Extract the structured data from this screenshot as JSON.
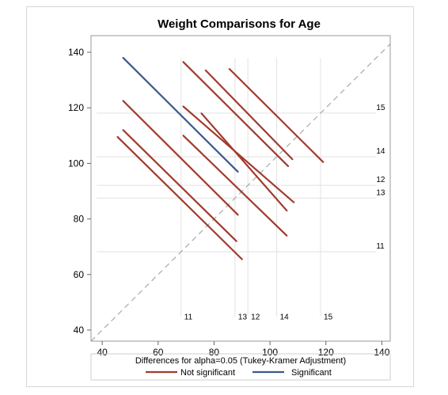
{
  "chart_data": {
    "type": "line",
    "title": "Weight Comparisons for Age",
    "xlim": [
      36,
      143
    ],
    "ylim": [
      36,
      146
    ],
    "x_ticks": [
      "40",
      "60",
      "80",
      "100",
      "120",
      "140"
    ],
    "y_ticks": [
      "40",
      "60",
      "80",
      "100",
      "120",
      "140"
    ],
    "reference_line": "diagonal y = x (dashed)",
    "level_means": [
      {
        "label": "11",
        "value": 68.2
      },
      {
        "label": "13",
        "value": 87.5
      },
      {
        "label": "12",
        "value": 92.1
      },
      {
        "label": "14",
        "value": 102.4
      },
      {
        "label": "15",
        "value": 118.1
      }
    ],
    "right_labels": [
      "15",
      "14",
      "12",
      "13",
      "11"
    ],
    "bottom_labels": [
      "11",
      "13",
      "12",
      "14",
      "15"
    ],
    "comparisons": [
      {
        "status": "not",
        "x": [
          45.5,
          90.0
        ],
        "y": [
          109.5,
          65.5
        ]
      },
      {
        "status": "not",
        "x": [
          47.5,
          88.0
        ],
        "y": [
          112.0,
          72.0
        ]
      },
      {
        "status": "not",
        "x": [
          47.5,
          88.5
        ],
        "y": [
          122.5,
          81.5
        ]
      },
      {
        "status": "sig",
        "x": [
          47.5,
          88.5
        ],
        "y": [
          138.0,
          97.0
        ]
      },
      {
        "status": "not",
        "x": [
          69.0,
          106.0
        ],
        "y": [
          110.0,
          74.0
        ]
      },
      {
        "status": "not",
        "x": [
          69.0,
          108.5
        ],
        "y": [
          120.5,
          86.0
        ]
      },
      {
        "status": "not",
        "x": [
          69.0,
          106.5
        ],
        "y": [
          136.5,
          99.0
        ]
      },
      {
        "status": "not",
        "x": [
          75.5,
          106.0
        ],
        "y": [
          118.0,
          83.0
        ]
      },
      {
        "status": "not",
        "x": [
          77.0,
          108.0
        ],
        "y": [
          133.5,
          101.5
        ]
      },
      {
        "status": "not",
        "x": [
          85.5,
          119.0
        ],
        "y": [
          134.0,
          100.5
        ]
      }
    ],
    "legend": {
      "title": "Differences for alpha=0.05 (Tukey-Kramer Adjustment)",
      "items": [
        {
          "label": "Not significant",
          "color": "#a23a2e"
        },
        {
          "label": "Significant",
          "color": "#3a5a8c"
        }
      ]
    },
    "colors": {
      "not": "#a23a2e",
      "sig": "#3a5a8c",
      "diagonal": "#aaaaaa",
      "ref": "#e2e2e2"
    }
  }
}
